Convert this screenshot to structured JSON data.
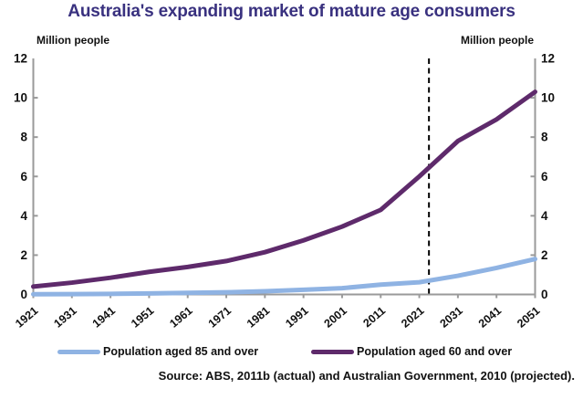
{
  "title": "Australia's expanding market of mature age consumers",
  "axis_units": {
    "left": "Million people",
    "right": "Million people"
  },
  "legend": {
    "items": [
      {
        "label": "Population aged 85 and over",
        "color": "#8FB3E3"
      },
      {
        "label": "Population aged 60 and over",
        "color": "#5E2A6B"
      }
    ]
  },
  "source": "Source: ABS, 2011b (actual) and Australian Government, 2010 (projected).",
  "colors": {
    "title": "#39317F",
    "axis": "#9A9A9A",
    "tick_text": "#111111",
    "divider": "#000000",
    "series_85": "#8FB3E3",
    "series_60": "#5E2A6B"
  },
  "chart_data": {
    "type": "line",
    "title": "Australia's expanding market of mature age consumers",
    "xlabel": "",
    "ylabel": "Million people",
    "ylim": [
      0,
      12
    ],
    "y_ticks": [
      0,
      2,
      4,
      6,
      8,
      10,
      12
    ],
    "grid": false,
    "legend_position": "bottom",
    "categories": [
      "1921",
      "1931",
      "1941",
      "1951",
      "1961",
      "1971",
      "1981",
      "1991",
      "2001",
      "2011",
      "2021",
      "2031",
      "2041",
      "2051"
    ],
    "series": [
      {
        "name": "Population aged 85 and over",
        "color": "#8FB3E3",
        "values": [
          0.01,
          0.02,
          0.03,
          0.05,
          0.08,
          0.11,
          0.16,
          0.24,
          0.32,
          0.5,
          0.62,
          0.95,
          1.35,
          1.8
        ]
      },
      {
        "name": "Population aged 60 and over",
        "color": "#5E2A6B",
        "values": [
          0.4,
          0.6,
          0.85,
          1.15,
          1.4,
          1.7,
          2.15,
          2.75,
          3.45,
          4.3,
          6.0,
          7.8,
          8.9,
          10.3
        ]
      }
    ],
    "annotations": [
      {
        "type": "vertical-dashed-line",
        "x": "2023.5"
      }
    ]
  }
}
